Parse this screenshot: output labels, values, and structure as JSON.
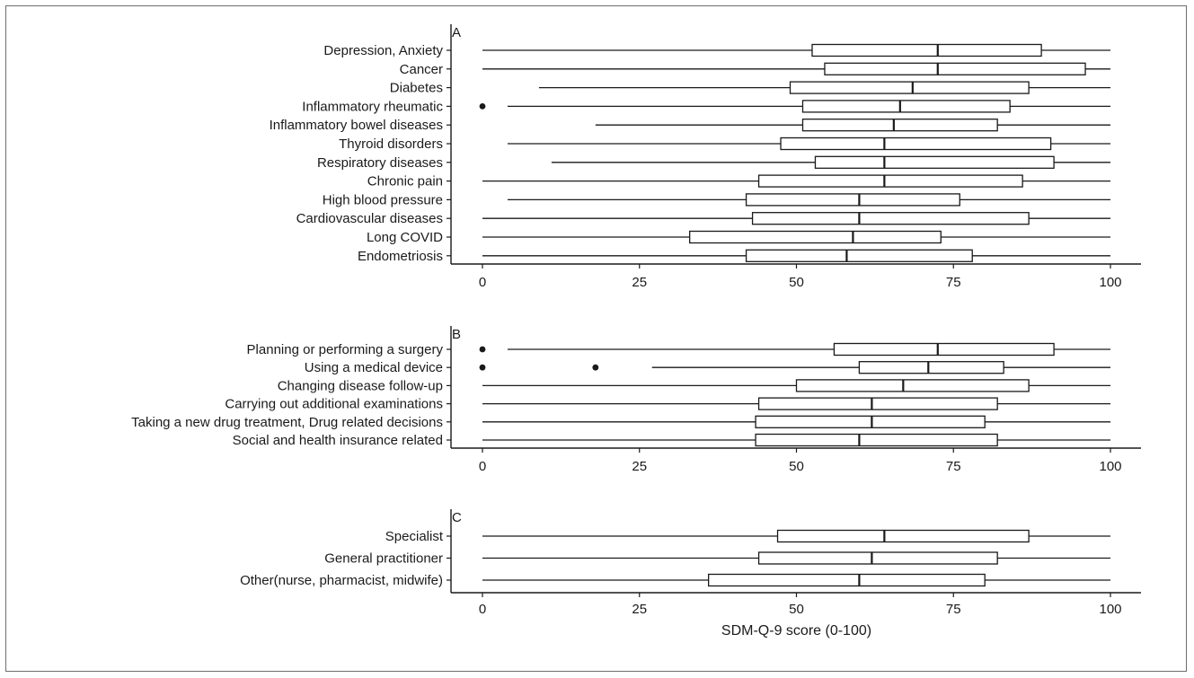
{
  "chart_data": [
    {
      "type": "boxplot",
      "panel_label": "A",
      "xlim": [
        0,
        100
      ],
      "x_ticks": [
        0,
        25,
        50,
        75,
        100
      ],
      "categories": [
        "Depression, Anxiety",
        "Cancer",
        "Diabetes",
        "Inflammatory rheumatic",
        "Inflammatory bowel diseases",
        "Thyroid disorders",
        "Respiratory diseases",
        "Chronic pain",
        "High blood pressure",
        "Cardiovascular diseases",
        "Long COVID",
        "Endometriosis"
      ],
      "boxes": [
        {
          "whisker_low": 0,
          "q1": 52.5,
          "median": 72.5,
          "q3": 89,
          "whisker_high": 100,
          "outliers": []
        },
        {
          "whisker_low": 0,
          "q1": 54.5,
          "median": 72.5,
          "q3": 96,
          "whisker_high": 100,
          "outliers": []
        },
        {
          "whisker_low": 9,
          "q1": 49,
          "median": 68.5,
          "q3": 87,
          "whisker_high": 100,
          "outliers": []
        },
        {
          "whisker_low": 4,
          "q1": 51,
          "median": 66.5,
          "q3": 84,
          "whisker_high": 100,
          "outliers": [
            0
          ]
        },
        {
          "whisker_low": 18,
          "q1": 51,
          "median": 65.5,
          "q3": 82,
          "whisker_high": 100,
          "outliers": []
        },
        {
          "whisker_low": 4,
          "q1": 47.5,
          "median": 64,
          "q3": 90.5,
          "whisker_high": 100,
          "outliers": []
        },
        {
          "whisker_low": 11,
          "q1": 53,
          "median": 64,
          "q3": 91,
          "whisker_high": 100,
          "outliers": []
        },
        {
          "whisker_low": 0,
          "q1": 44,
          "median": 64,
          "q3": 86,
          "whisker_high": 100,
          "outliers": []
        },
        {
          "whisker_low": 4,
          "q1": 42,
          "median": 60,
          "q3": 76,
          "whisker_high": 100,
          "outliers": []
        },
        {
          "whisker_low": 0,
          "q1": 43,
          "median": 60,
          "q3": 87,
          "whisker_high": 100,
          "outliers": []
        },
        {
          "whisker_low": 0,
          "q1": 33,
          "median": 59,
          "q3": 73,
          "whisker_high": 100,
          "outliers": []
        },
        {
          "whisker_low": 0,
          "q1": 42,
          "median": 58,
          "q3": 78,
          "whisker_high": 100,
          "outliers": []
        }
      ],
      "xlabel": ""
    },
    {
      "type": "boxplot",
      "panel_label": "B",
      "xlim": [
        0,
        100
      ],
      "x_ticks": [
        0,
        25,
        50,
        75,
        100
      ],
      "categories": [
        "Planning or performing a surgery",
        "Using a medical device",
        "Changing disease follow-up",
        "Carrying out additional examinations",
        "Taking a new drug treatment, Drug related decisions",
        "Social and health insurance related"
      ],
      "boxes": [
        {
          "whisker_low": 4,
          "q1": 56,
          "median": 72.5,
          "q3": 91,
          "whisker_high": 100,
          "outliers": [
            0
          ]
        },
        {
          "whisker_low": 27,
          "q1": 60,
          "median": 71,
          "q3": 83,
          "whisker_high": 100,
          "outliers": [
            0,
            18
          ]
        },
        {
          "whisker_low": 0,
          "q1": 50,
          "median": 67,
          "q3": 87,
          "whisker_high": 100,
          "outliers": []
        },
        {
          "whisker_low": 0,
          "q1": 44,
          "median": 62,
          "q3": 82,
          "whisker_high": 100,
          "outliers": []
        },
        {
          "whisker_low": 0,
          "q1": 43.5,
          "median": 62,
          "q3": 80,
          "whisker_high": 100,
          "outliers": []
        },
        {
          "whisker_low": 0,
          "q1": 43.5,
          "median": 60,
          "q3": 82,
          "whisker_high": 100,
          "outliers": []
        }
      ],
      "xlabel": ""
    },
    {
      "type": "boxplot",
      "panel_label": "C",
      "xlim": [
        0,
        100
      ],
      "x_ticks": [
        0,
        25,
        50,
        75,
        100
      ],
      "categories": [
        "Specialist",
        "General practitioner",
        "Other(nurse, pharmacist, midwife)"
      ],
      "boxes": [
        {
          "whisker_low": 0,
          "q1": 47,
          "median": 64,
          "q3": 87,
          "whisker_high": 100,
          "outliers": []
        },
        {
          "whisker_low": 0,
          "q1": 44,
          "median": 62,
          "q3": 82,
          "whisker_high": 100,
          "outliers": []
        },
        {
          "whisker_low": 0,
          "q1": 36,
          "median": 60,
          "q3": 80,
          "whisker_high": 100,
          "outliers": []
        }
      ],
      "xlabel": "SDM-Q-9 score (0-100)"
    }
  ]
}
